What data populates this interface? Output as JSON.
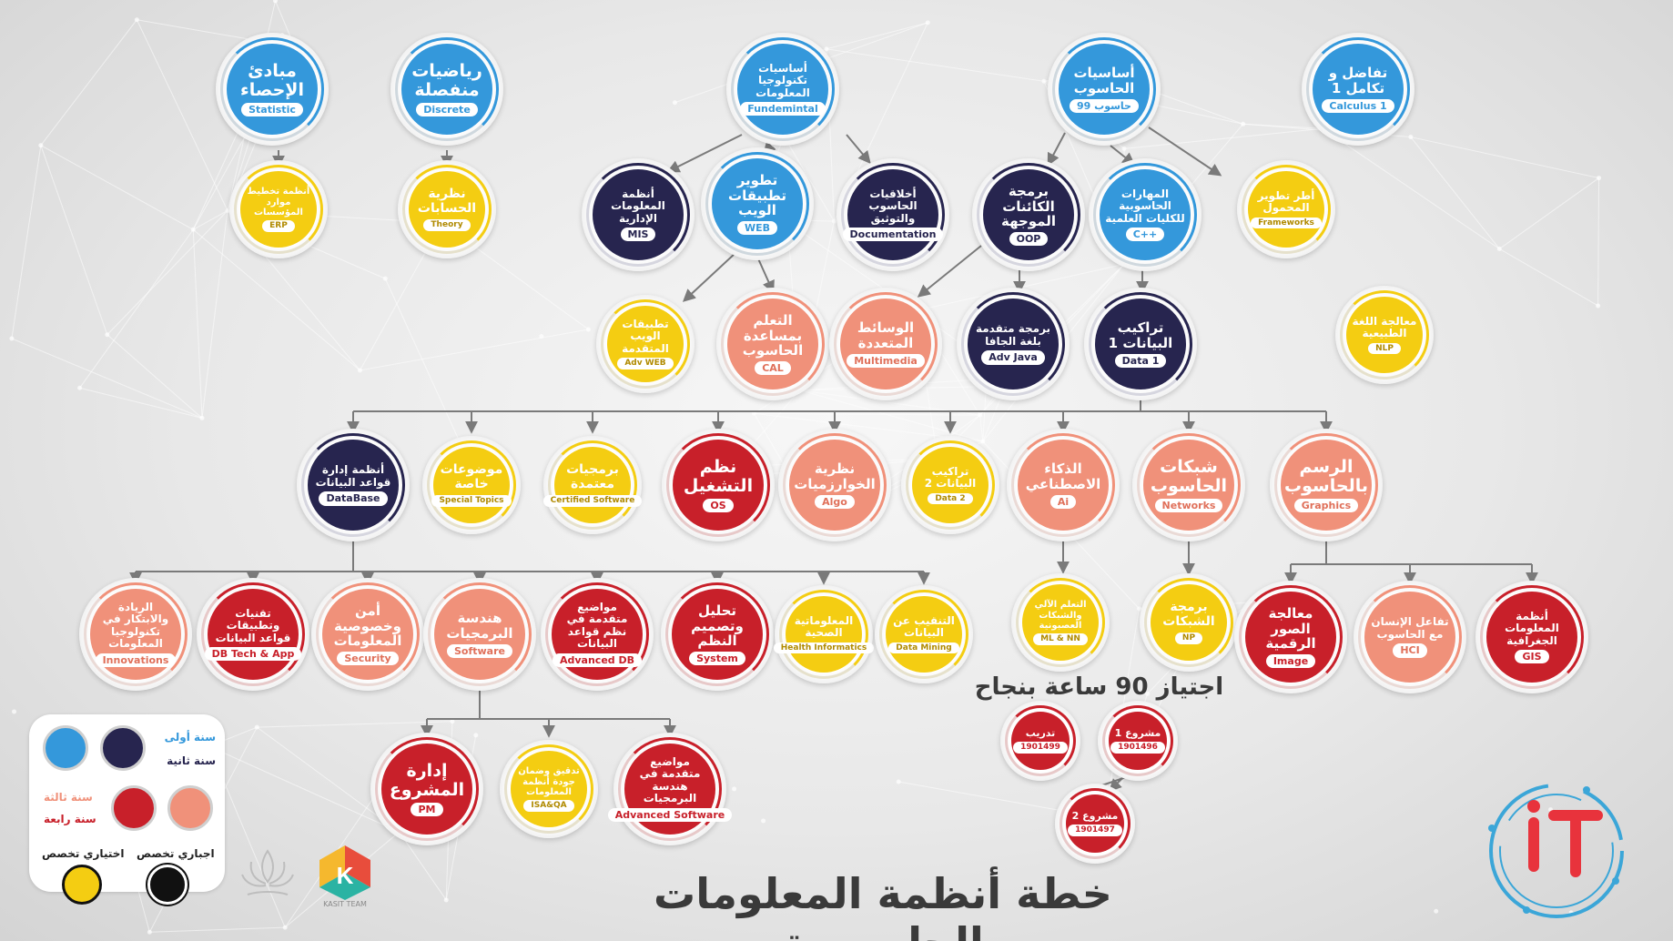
{
  "title": "خطة أنظمة المعلومات الحاسوبية",
  "pass_note": "اجتياز 90 ساعة بنجاح",
  "colors": {
    "first_year": "#3498db",
    "second_year": "#27254f",
    "third_year": "#f0917a",
    "fourth_year": "#c8202a",
    "elective": "#f4cd12",
    "mandatory_specialization": "#111111",
    "connector": "#7a7a7a"
  },
  "legend": {
    "first_year": "سنة أولى",
    "second_year": "سنة ثانية",
    "third_year": "سنة ثالثة",
    "fourth_year": "سنة رابعة",
    "mandatory": "اجباري تخصص",
    "elective": "اختياري تخصص"
  },
  "logos": {
    "kasit_text": "KASIT TEAM",
    "it_text": "iT"
  },
  "courses": {
    "stat": {
      "name": "مبادئ الإحصاء",
      "code": "Statistic",
      "category": "first_year"
    },
    "discrete": {
      "name": "رياضيات منفصلة",
      "code": "Discrete",
      "category": "first_year"
    },
    "fund": {
      "name": "أساسيات تكنولوجيا المعلومات",
      "code": "Fundemintal",
      "category": "first_year"
    },
    "cs99": {
      "name": "أساسيات الحاسوب",
      "code": "حاسوب 99",
      "category": "first_year"
    },
    "calc": {
      "name": "تفاضل و تكامل 1",
      "code": "Calculus 1",
      "category": "first_year"
    },
    "erp": {
      "name": "أنظمة تخطيط موارد المؤسسات",
      "code": "ERP",
      "category": "elective"
    },
    "theory": {
      "name": "نظرية الحسابات",
      "code": "Theory",
      "category": "elective"
    },
    "mis": {
      "name": "أنظمة المعلومات الإدارية",
      "code": "MIS",
      "category": "second_year"
    },
    "web": {
      "name": "تطوير تطبيقات الويب",
      "code": "WEB",
      "category": "first_year"
    },
    "doc": {
      "name": "أخلاقيات الحاسوب والتوثيق",
      "code": "Documentation",
      "category": "second_year"
    },
    "oop": {
      "name": "برمجة الكائنات الموجهة",
      "code": "OOP",
      "category": "second_year"
    },
    "cpp": {
      "name": "المهارات الحاسوبية للكليات العلمية",
      "code": "C++",
      "category": "first_year"
    },
    "frameworks": {
      "name": "أطر تطوير المحمول",
      "code": "Frameworks",
      "category": "elective"
    },
    "advweb": {
      "name": "تطبيقات الويب المتقدمة",
      "code": "Adv WEB",
      "category": "elective"
    },
    "cal": {
      "name": "التعلم بمساعدة الحاسوب",
      "code": "CAL",
      "category": "third_year"
    },
    "multimedia": {
      "name": "الوسائط المتعددة",
      "code": "Multimedia",
      "category": "third_year"
    },
    "advjava": {
      "name": "برمجة متقدمة بلغة الجافا",
      "code": "Adv Java",
      "category": "second_year"
    },
    "data1": {
      "name": "تراكيب البيانات 1",
      "code": "Data 1",
      "category": "second_year"
    },
    "nlp": {
      "name": "معالجة اللغة الطبيعية",
      "code": "NLP",
      "category": "elective"
    },
    "database": {
      "name": "أنظمة إدارة قواعد البيانات",
      "code": "DataBase",
      "category": "second_year"
    },
    "special": {
      "name": "موضوعات خاصة",
      "code": "Special Topics",
      "category": "elective"
    },
    "certified": {
      "name": "برمجيات معتمدة",
      "code": "Certified Software",
      "category": "elective"
    },
    "os": {
      "name": "نظم التشغيل",
      "code": "OS",
      "category": "fourth_year"
    },
    "algo": {
      "name": "نظرية الخوارزميات",
      "code": "Algo",
      "category": "third_year"
    },
    "data2": {
      "name": "تراكيب البيانات 2",
      "code": "Data 2",
      "category": "elective"
    },
    "ai": {
      "name": "الذكاء الاصطناعي",
      "code": "Ai",
      "category": "third_year"
    },
    "networks": {
      "name": "شبكات الحاسوب",
      "code": "Networks",
      "category": "third_year"
    },
    "graphics": {
      "name": "الرسم بالحاسوب",
      "code": "Graphics",
      "category": "third_year"
    },
    "innovations": {
      "name": "الريادة والابتكار في تكنولوجيا المعلومات",
      "code": "Innovations",
      "category": "third_year"
    },
    "dbtech": {
      "name": "تقنيات وتطبيقات قواعد البيانات",
      "code": "DB Tech & App",
      "category": "fourth_year"
    },
    "security": {
      "name": "أمن وخصوصية المعلومات",
      "code": "Security",
      "category": "third_year"
    },
    "software": {
      "name": "هندسة البرمجيات",
      "code": "Software",
      "category": "third_year"
    },
    "advdb": {
      "name": "مواضيع متقدمة في نظم قواعد البيانات",
      "code": "Advanced DB",
      "category": "fourth_year"
    },
    "system": {
      "name": "تحليل وتصميم النظم",
      "code": "System",
      "category": "fourth_year"
    },
    "health": {
      "name": "المعلوماتية الصحية",
      "code": "Health Informatics",
      "category": "elective"
    },
    "mining": {
      "name": "التنقيب عن البيانات",
      "code": "Data Mining",
      "category": "elective"
    },
    "mlnn": {
      "name": "التعلم الآلي والشبكات العصبونية",
      "code": "ML & NN",
      "category": "elective"
    },
    "np": {
      "name": "برمجة الشبكات",
      "code": "NP",
      "category": "elective"
    },
    "image": {
      "name": "معالجة الصور الرقمية",
      "code": "Image",
      "category": "fourth_year"
    },
    "hci": {
      "name": "تفاعل الإنسان مع الحاسوب",
      "code": "HCI",
      "category": "third_year"
    },
    "gis": {
      "name": "أنظمة المعلومات الجغرافية",
      "code": "GIS",
      "category": "fourth_year"
    },
    "pm": {
      "name": "إدارة المشروع",
      "code": "PM",
      "category": "fourth_year"
    },
    "isqa": {
      "name": "تدقيق وضمان جودة أنظمة المعلومات",
      "code": "ISA&QA",
      "category": "elective"
    },
    "advsw": {
      "name": "مواضيع متقدمة في هندسة البرمجيات",
      "code": "Advanced Software",
      "category": "fourth_year"
    },
    "training": {
      "name": "تدريب",
      "code": "1901499",
      "category": "fourth_year"
    },
    "proj1": {
      "name": "مشروع 1",
      "code": "1901496",
      "category": "fourth_year"
    },
    "proj2": {
      "name": "مشروع 2",
      "code": "1901497",
      "category": "fourth_year"
    }
  }
}
